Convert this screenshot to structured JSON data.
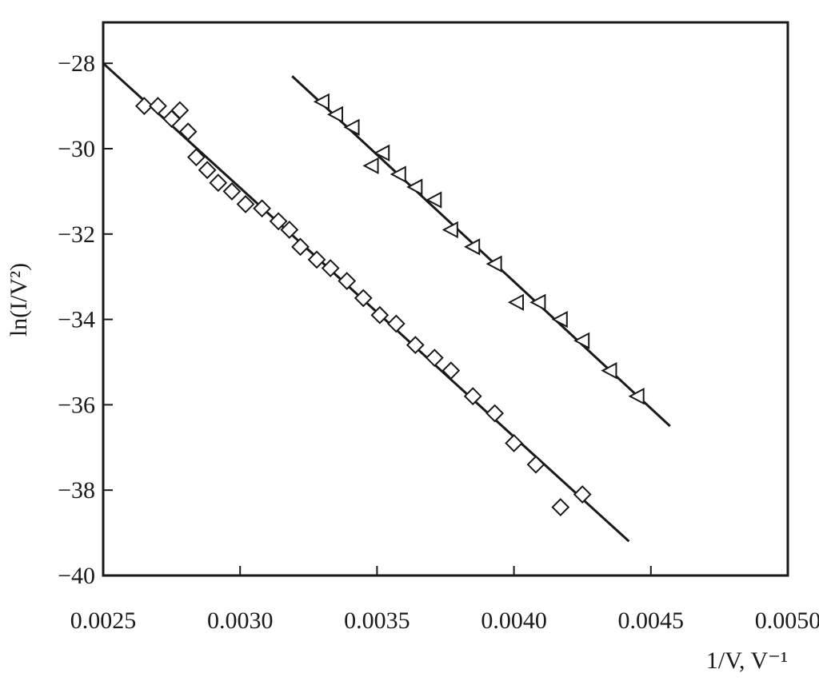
{
  "chart_data": {
    "type": "scatter",
    "xlabel": "1/V, V⁻¹",
    "ylabel": "ln(I/V²)",
    "xlim": [
      0.0025,
      0.005
    ],
    "ylim": [
      -40,
      -27
    ],
    "x_ticks": [
      "0.0025",
      "0.0030",
      "0.0035",
      "0.0040",
      "0.0045",
      "0.0050"
    ],
    "x_tick_values": [
      0.0025,
      0.003,
      0.0035,
      0.004,
      0.0045,
      0.005
    ],
    "y_ticks": [
      "−28",
      "−30",
      "−32",
      "−34",
      "−36",
      "−38",
      "−40"
    ],
    "y_tick_values": [
      -28,
      -30,
      -32,
      -34,
      -36,
      -38,
      -40
    ],
    "grid": false,
    "series": [
      {
        "marker": "diamond",
        "points": [
          [
            0.00265,
            -29.0
          ],
          [
            0.0027,
            -29.0
          ],
          [
            0.00275,
            -29.3
          ],
          [
            0.00278,
            -29.1
          ],
          [
            0.00281,
            -29.6
          ],
          [
            0.00284,
            -30.2
          ],
          [
            0.00288,
            -30.5
          ],
          [
            0.00292,
            -30.8
          ],
          [
            0.00297,
            -31.0
          ],
          [
            0.00302,
            -31.3
          ],
          [
            0.00308,
            -31.4
          ],
          [
            0.00314,
            -31.7
          ],
          [
            0.00318,
            -31.9
          ],
          [
            0.00322,
            -32.3
          ],
          [
            0.00328,
            -32.6
          ],
          [
            0.00333,
            -32.8
          ],
          [
            0.00339,
            -33.1
          ],
          [
            0.00345,
            -33.5
          ],
          [
            0.00351,
            -33.9
          ],
          [
            0.00357,
            -34.1
          ],
          [
            0.00364,
            -34.6
          ],
          [
            0.00371,
            -34.9
          ],
          [
            0.00377,
            -35.2
          ],
          [
            0.00385,
            -35.8
          ],
          [
            0.00393,
            -36.2
          ],
          [
            0.004,
            -36.9
          ],
          [
            0.00408,
            -37.4
          ],
          [
            0.00417,
            -38.4
          ],
          [
            0.00425,
            -38.1
          ]
        ],
        "fit": [
          [
            0.0025,
            -28.0
          ],
          [
            0.00442,
            -39.2
          ]
        ]
      },
      {
        "marker": "triangle-left",
        "points": [
          [
            0.0033,
            -28.9
          ],
          [
            0.00335,
            -29.2
          ],
          [
            0.00341,
            -29.5
          ],
          [
            0.00348,
            -30.4
          ],
          [
            0.00352,
            -30.1
          ],
          [
            0.00358,
            -30.6
          ],
          [
            0.00364,
            -30.9
          ],
          [
            0.00371,
            -31.2
          ],
          [
            0.00377,
            -31.9
          ],
          [
            0.00385,
            -32.3
          ],
          [
            0.00393,
            -32.7
          ],
          [
            0.00401,
            -33.6
          ],
          [
            0.00409,
            -33.6
          ],
          [
            0.00417,
            -34.0
          ],
          [
            0.00425,
            -34.5
          ],
          [
            0.00435,
            -35.2
          ],
          [
            0.00445,
            -35.8
          ]
        ],
        "fit": [
          [
            0.00319,
            -28.3
          ],
          [
            0.00457,
            -36.5
          ]
        ]
      }
    ]
  }
}
